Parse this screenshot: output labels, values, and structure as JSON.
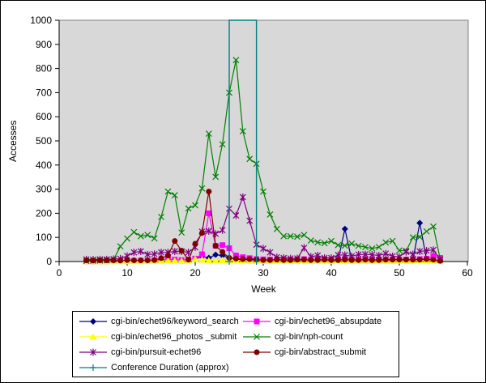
{
  "chart_data": {
    "type": "line",
    "title": "",
    "xlabel": "Week",
    "ylabel": "Accesses",
    "xlim": [
      0,
      60
    ],
    "ylim": [
      0,
      1000
    ],
    "xticks": [
      0,
      10,
      20,
      30,
      40,
      50,
      60
    ],
    "yticks": [
      0,
      100,
      200,
      300,
      400,
      500,
      600,
      700,
      800,
      900,
      1000
    ],
    "grid": false,
    "legend_position": "bottom",
    "plot_background": "#d8d8d8",
    "axis_color": "#000000",
    "plot_border_color": "#808080",
    "x": [
      4,
      5,
      6,
      7,
      8,
      9,
      10,
      11,
      12,
      13,
      14,
      15,
      16,
      17,
      18,
      19,
      20,
      21,
      22,
      23,
      24,
      25,
      26,
      27,
      28,
      29,
      30,
      31,
      32,
      33,
      34,
      35,
      36,
      37,
      38,
      39,
      40,
      41,
      42,
      43,
      44,
      45,
      46,
      47,
      48,
      49,
      50,
      51,
      52,
      53,
      54,
      55,
      56
    ],
    "series": [
      {
        "name": "cgi-bin/echet96/keyword_search",
        "color": "#000080",
        "marker": "diamond",
        "values": [
          2,
          2,
          3,
          2,
          3,
          3,
          4,
          3,
          4,
          3,
          4,
          5,
          8,
          5,
          4,
          6,
          10,
          21,
          15,
          28,
          25,
          15,
          10,
          8,
          8,
          5,
          4,
          4,
          5,
          4,
          4,
          5,
          5,
          4,
          4,
          4,
          5,
          6,
          135,
          6,
          4,
          4,
          4,
          5,
          4,
          4,
          4,
          4,
          6,
          160,
          8,
          5,
          3
        ]
      },
      {
        "name": "cgi-bin/echet96_absupdate",
        "color": "#ff00ff",
        "marker": "square",
        "values": [
          1,
          1,
          1,
          1,
          2,
          2,
          2,
          2,
          3,
          3,
          4,
          8,
          9,
          8,
          6,
          8,
          12,
          30,
          200,
          65,
          68,
          55,
          25,
          18,
          14,
          10,
          9,
          8,
          8,
          9,
          8,
          8,
          10,
          8,
          8,
          9,
          8,
          8,
          10,
          8,
          8,
          10,
          8,
          8,
          8,
          8,
          8,
          8,
          9,
          10,
          12,
          22,
          15
        ]
      },
      {
        "name": "cgi-bin/echet96_photos _submit",
        "color": "#ffff00",
        "marker": "triangle",
        "values": [
          1,
          1,
          1,
          1,
          1,
          1,
          1,
          1,
          1,
          2,
          2,
          3,
          4,
          3,
          2,
          3,
          10,
          7,
          4,
          3,
          6,
          3,
          6,
          3,
          2,
          2,
          2,
          2,
          3,
          2,
          3,
          2,
          3,
          2,
          2,
          3,
          2,
          4,
          3,
          2,
          3,
          2,
          2,
          3,
          2,
          2,
          3,
          2,
          3,
          4,
          3,
          3,
          2
        ]
      },
      {
        "name": "cgi-bin/nph-count",
        "color": "#008000",
        "marker": "x",
        "values": [
          2,
          3,
          4,
          5,
          8,
          63,
          95,
          122,
          105,
          110,
          96,
          185,
          290,
          275,
          120,
          220,
          233,
          303,
          530,
          351,
          486,
          700,
          835,
          540,
          425,
          405,
          290,
          195,
          135,
          105,
          105,
          103,
          110,
          87,
          80,
          76,
          85,
          68,
          66,
          74,
          65,
          60,
          54,
          60,
          79,
          85,
          46,
          44,
          100,
          102,
          125,
          145,
          10
        ]
      },
      {
        "name": "cgi-bin/pursuit-echet96",
        "color": "#800080",
        "marker": "asterisk",
        "values": [
          9,
          8,
          9,
          9,
          10,
          12,
          23,
          38,
          42,
          29,
          31,
          38,
          38,
          42,
          42,
          38,
          59,
          124,
          126,
          115,
          130,
          219,
          191,
          267,
          169,
          70,
          54,
          38,
          18,
          15,
          13,
          13,
          57,
          20,
          25,
          15,
          15,
          27,
          27,
          22,
          29,
          30,
          28,
          25,
          33,
          22,
          20,
          40,
          30,
          42,
          45,
          48,
          8
        ]
      },
      {
        "name": "cgi-bin/abstract_submit",
        "color": "#800000",
        "marker": "circle",
        "values": [
          5,
          4,
          5,
          5,
          5,
          4,
          6,
          5,
          5,
          5,
          6,
          14,
          25,
          85,
          45,
          8,
          74,
          118,
          290,
          65,
          40,
          15,
          12,
          10,
          10,
          8,
          6,
          6,
          8,
          6,
          6,
          8,
          8,
          6,
          6,
          8,
          6,
          6,
          8,
          6,
          6,
          8,
          6,
          6,
          8,
          8,
          8,
          8,
          8,
          8,
          10,
          8,
          3
        ]
      },
      {
        "name": "Conference Duration (approx)",
        "color": "#008080",
        "marker": "plus",
        "type": "vertical-band",
        "band": {
          "from_week": 25,
          "to_week": 29,
          "top": 1000
        }
      }
    ]
  }
}
